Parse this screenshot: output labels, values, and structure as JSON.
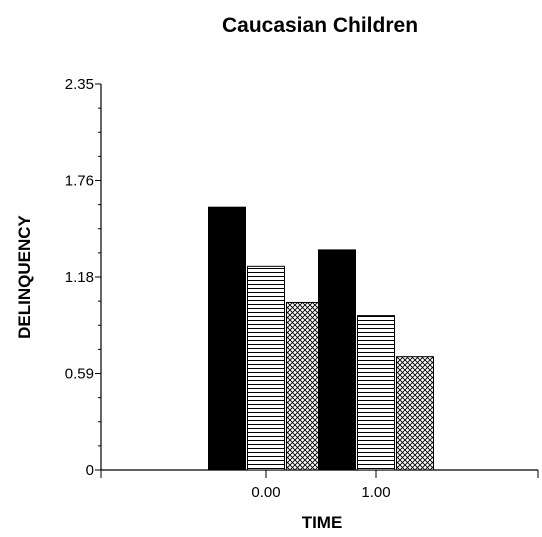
{
  "chart_data": {
    "type": "bar",
    "title": "Caucasian Children",
    "xlabel": "TIME",
    "ylabel": "DELINQUENCY",
    "categories": [
      "0.00",
      "1.00"
    ],
    "y_ticks": [
      "0",
      "0.59",
      "1.18",
      "1.76",
      "2.35"
    ],
    "ylim": [
      0,
      2.35
    ],
    "grid": false,
    "legend": "none",
    "series": [
      {
        "fill": "solid-black",
        "values": [
          1.6,
          1.34
        ]
      },
      {
        "fill": "horizontal-lines",
        "values": [
          1.24,
          0.94
        ]
      },
      {
        "fill": "crosshatch",
        "values": [
          1.02,
          0.69
        ]
      }
    ]
  }
}
